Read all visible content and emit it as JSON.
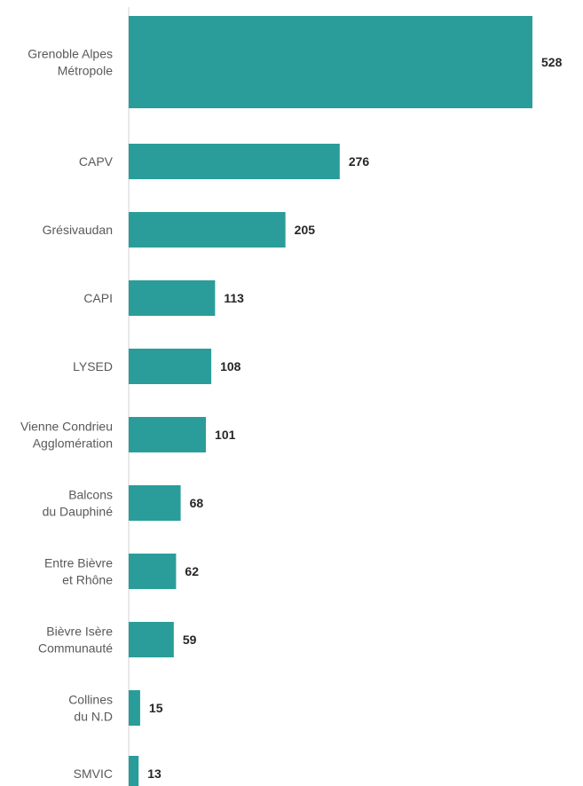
{
  "chart_data": {
    "type": "bar",
    "orientation": "horizontal",
    "categories": [
      "Grenoble Alpes\nMétropole",
      "CAPV",
      "Grésivaudan",
      "CAPI",
      "LYSED",
      "Vienne Condrieu\nAgglomération",
      "Balcons\ndu Dauphiné",
      "Entre Bièvre\net Rhône",
      "Bièvre Isère\nCommunauté",
      "Collines\ndu N.D",
      "SMVIC"
    ],
    "values": [
      528,
      276,
      205,
      113,
      108,
      101,
      68,
      62,
      59,
      15,
      13
    ],
    "bar_color": "#2a9d9a",
    "axis_color": "#d0d0d0",
    "data_labels": true,
    "grid": false,
    "legend": "none"
  }
}
